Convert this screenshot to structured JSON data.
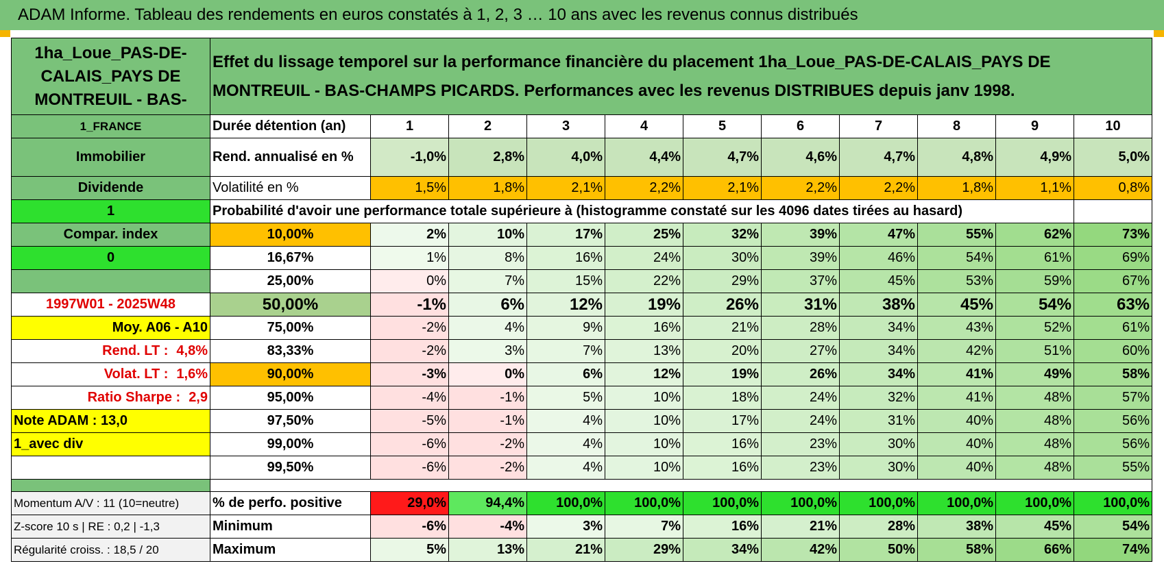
{
  "page_title": "ADAM Informe. Tableau des rendements en euros constatés à 1, 2, 3 … 10 ans avec les revenus connus distribués",
  "left": {
    "name": "1ha_Loue_PAS-DE-CALAIS_PAYS DE MONTREUIL - BAS-",
    "country": "1_FRANCE",
    "category": "Immobilier",
    "income": "Dividende",
    "flag1": "1",
    "compar": "Compar. index",
    "flag0": "0",
    "period": "1997W01 - 2025W48",
    "moy": "Moy. A06 - A10",
    "rend_label": "Rend. LT :",
    "rend_value": "4,8%",
    "volat_label": "Volat. LT :",
    "volat_value": "1,6%",
    "sharpe_label": "Ratio Sharpe :",
    "sharpe_value": "2,9",
    "note": "Note ADAM : 13,0",
    "avec_div": "1_avec div",
    "momentum": "Momentum A/V : 11 (10=neutre)",
    "zscore": "Z-score 10 s | RE : 0,2 | -1,3",
    "regularite": "Régularité croiss. : 18,5 / 20"
  },
  "description": "Effet du lissage temporel sur la performance financière du placement 1ha_Loue_PAS-DE-CALAIS_PAYS DE MONTREUIL - BAS-CHAMPS PICARDS. Performances avec les revenus DISTRIBUES depuis janv 1998.",
  "header": {
    "label": "Durée détention (an)",
    "years": [
      "1",
      "2",
      "3",
      "4",
      "5",
      "6",
      "7",
      "8",
      "9",
      "10"
    ]
  },
  "rend": {
    "label": "Rend. annualisé en %",
    "values": [
      "-1,0%",
      "2,8%",
      "4,0%",
      "4,4%",
      "4,7%",
      "4,6%",
      "4,7%",
      "4,8%",
      "4,9%",
      "5,0%"
    ]
  },
  "vol": {
    "label": "Volatilité en %",
    "values": [
      "1,5%",
      "1,8%",
      "2,1%",
      "2,2%",
      "2,1%",
      "2,2%",
      "2,2%",
      "1,8%",
      "1,1%",
      "0,8%"
    ]
  },
  "prob_title": "Probabilité d'avoir une performance totale supérieure à (histogramme constaté sur les 4096 dates tirées au hasard)",
  "quantiles": [
    {
      "q": "10,00%",
      "values": [
        "2%",
        "10%",
        "17%",
        "25%",
        "32%",
        "39%",
        "47%",
        "55%",
        "62%",
        "73%"
      ]
    },
    {
      "q": "16,67%",
      "values": [
        "1%",
        "8%",
        "16%",
        "24%",
        "30%",
        "39%",
        "46%",
        "54%",
        "61%",
        "69%"
      ]
    },
    {
      "q": "25,00%",
      "values": [
        "0%",
        "7%",
        "15%",
        "22%",
        "29%",
        "37%",
        "45%",
        "53%",
        "59%",
        "67%"
      ]
    },
    {
      "q": "50,00%",
      "values": [
        "-1%",
        "6%",
        "12%",
        "19%",
        "26%",
        "31%",
        "38%",
        "45%",
        "54%",
        "63%"
      ]
    },
    {
      "q": "75,00%",
      "values": [
        "-2%",
        "4%",
        "9%",
        "16%",
        "21%",
        "28%",
        "34%",
        "43%",
        "52%",
        "61%"
      ]
    },
    {
      "q": "83,33%",
      "values": [
        "-2%",
        "3%",
        "7%",
        "13%",
        "20%",
        "27%",
        "34%",
        "42%",
        "51%",
        "60%"
      ]
    },
    {
      "q": "90,00%",
      "values": [
        "-3%",
        "0%",
        "6%",
        "12%",
        "19%",
        "26%",
        "34%",
        "41%",
        "49%",
        "58%"
      ]
    },
    {
      "q": "95,00%",
      "values": [
        "-4%",
        "-1%",
        "5%",
        "10%",
        "18%",
        "24%",
        "32%",
        "41%",
        "48%",
        "57%"
      ]
    },
    {
      "q": "97,50%",
      "values": [
        "-5%",
        "-1%",
        "4%",
        "10%",
        "17%",
        "24%",
        "31%",
        "40%",
        "48%",
        "56%"
      ]
    },
    {
      "q": "99,00%",
      "values": [
        "-6%",
        "-2%",
        "4%",
        "10%",
        "16%",
        "23%",
        "30%",
        "40%",
        "48%",
        "56%"
      ]
    },
    {
      "q": "99,50%",
      "values": [
        "-6%",
        "-2%",
        "4%",
        "10%",
        "16%",
        "23%",
        "30%",
        "40%",
        "48%",
        "55%"
      ]
    }
  ],
  "positive": {
    "label": "% de perfo. positive",
    "values": [
      "29,0%",
      "94,4%",
      "100,0%",
      "100,0%",
      "100,0%",
      "100,0%",
      "100,0%",
      "100,0%",
      "100,0%",
      "100,0%"
    ]
  },
  "minimum": {
    "label": "Minimum",
    "values": [
      "-6%",
      "-4%",
      "3%",
      "7%",
      "16%",
      "21%",
      "28%",
      "38%",
      "45%",
      "54%"
    ]
  },
  "maximum": {
    "label": "Maximum",
    "values": [
      "5%",
      "13%",
      "21%",
      "29%",
      "34%",
      "42%",
      "50%",
      "58%",
      "66%",
      "74%"
    ]
  },
  "colors": {
    "header_green": "#7ac27a",
    "bright_green": "#2ee02e",
    "orange": "#ffc000",
    "yellow": "#ffff00",
    "red_text": "#e00000",
    "negative_red": "#ff1a1a"
  }
}
